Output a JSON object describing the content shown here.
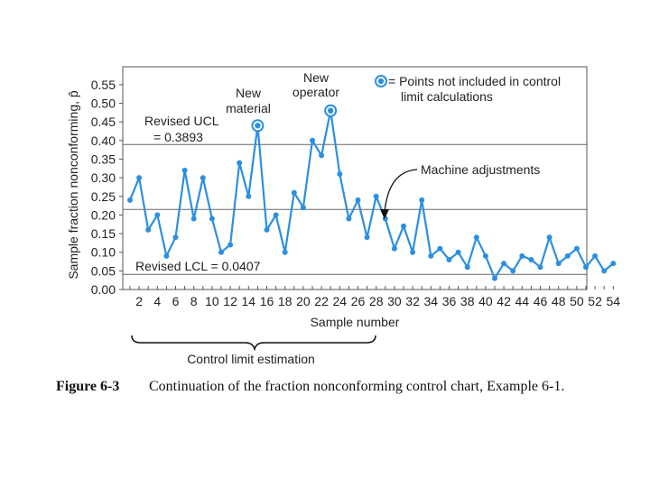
{
  "chart_data": {
    "type": "line",
    "ylabel": "Sample fraction nonconforming, p̂",
    "xlabel": "Sample number",
    "ylim": [
      0,
      0.6
    ],
    "xlim": [
      0,
      55
    ],
    "yticks": [
      "0.00",
      "0.05",
      "0.10",
      "0.15",
      "0.20",
      "0.25",
      "0.30",
      "0.35",
      "0.40",
      "0.45",
      "0.50",
      "0.55"
    ],
    "xticks": [
      "2",
      "4",
      "6",
      "8",
      "10",
      "12",
      "14",
      "16",
      "18",
      "20",
      "22",
      "24",
      "26",
      "28",
      "30",
      "32",
      "34",
      "36",
      "38",
      "40",
      "42",
      "44",
      "46",
      "48",
      "50",
      "52",
      "54"
    ],
    "x": [
      1,
      2,
      3,
      4,
      5,
      6,
      7,
      8,
      9,
      10,
      11,
      12,
      13,
      14,
      15,
      16,
      17,
      18,
      19,
      20,
      21,
      22,
      23,
      24,
      25,
      26,
      27,
      28,
      29,
      30,
      31,
      32,
      33,
      34,
      35,
      36,
      37,
      38,
      39,
      40,
      41,
      42,
      43,
      44,
      45,
      46,
      47,
      48,
      49,
      50,
      51,
      52,
      53,
      54
    ],
    "values": [
      0.24,
      0.3,
      0.16,
      0.2,
      0.09,
      0.14,
      0.32,
      0.19,
      0.3,
      0.19,
      0.1,
      0.12,
      0.34,
      0.25,
      0.44,
      0.16,
      0.2,
      0.1,
      0.26,
      0.22,
      0.4,
      0.36,
      0.48,
      0.31,
      0.19,
      0.24,
      0.14,
      0.25,
      0.19,
      0.11,
      0.17,
      0.1,
      0.24,
      0.09,
      0.11,
      0.08,
      0.1,
      0.06,
      0.14,
      0.09,
      0.03,
      0.07,
      0.05,
      0.09,
      0.08,
      0.06,
      0.14,
      0.07,
      0.09,
      0.11,
      0.06,
      0.09,
      0.05,
      0.07
    ],
    "excluded_points": [
      15,
      23
    ],
    "control_lines": [
      {
        "name": "Revised UCL",
        "value": 0.3893
      },
      {
        "name": "Center line",
        "value": 0.215
      },
      {
        "name": "Revised LCL",
        "value": 0.0407
      }
    ],
    "grid": false,
    "color": "#2c8fe0"
  },
  "annotations": {
    "ucl_line1": "Revised UCL",
    "ucl_line2": "= 0.3893",
    "lcl": "Revised LCL = 0.0407",
    "new_material_1": "New",
    "new_material_2": "material",
    "new_operator_1": "New",
    "new_operator_2": "operator",
    "legend_1": "= Points not included in control",
    "legend_2": "limit calculations",
    "machine": "Machine adjustments",
    "estimation": "Control limit estimation"
  },
  "caption": {
    "figure": "Figure 6-3",
    "text": "Continuation of the fraction nonconforming control chart, Example 6-1."
  }
}
